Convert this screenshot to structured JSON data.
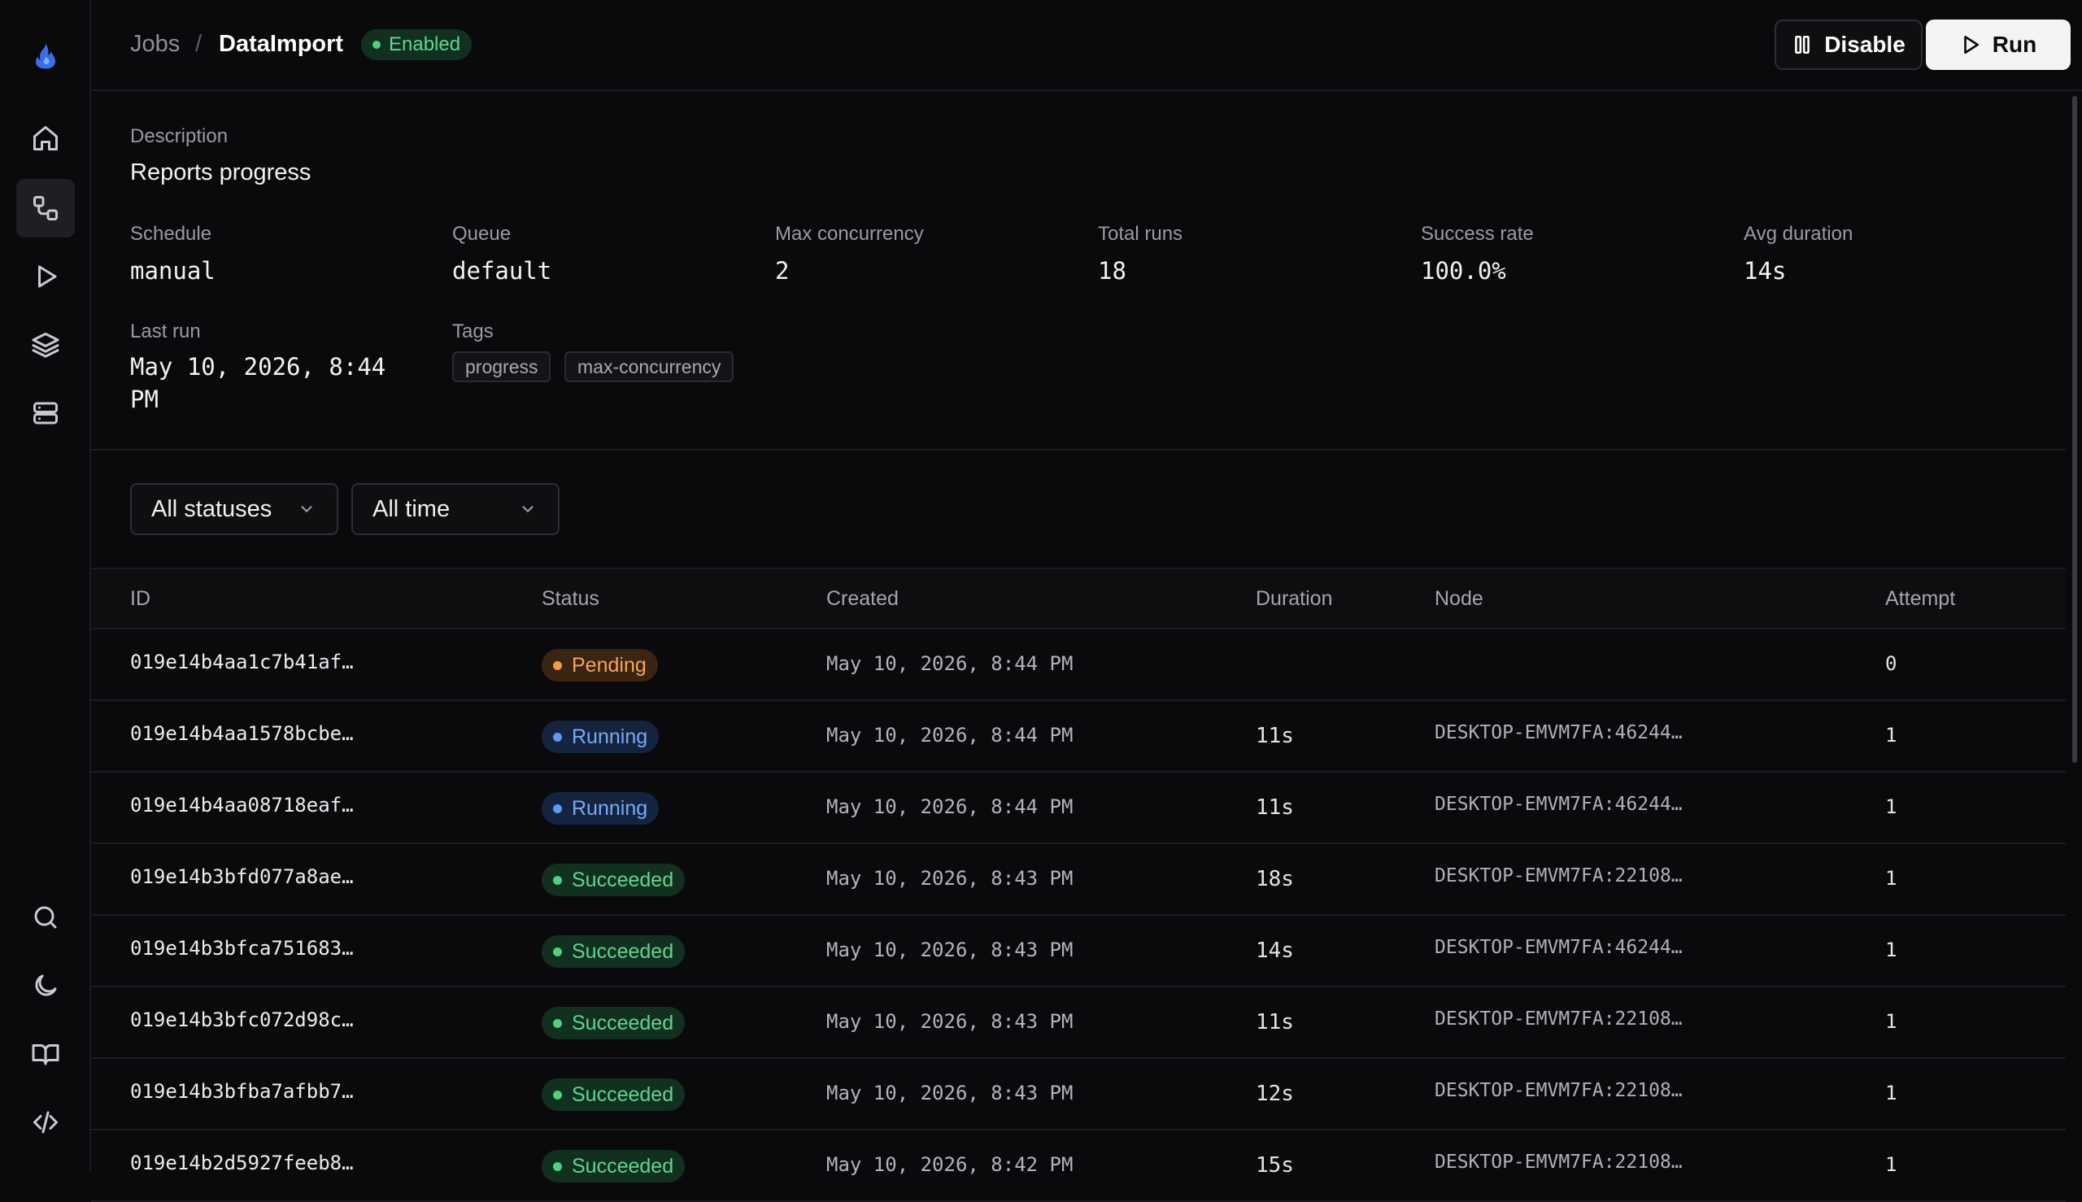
{
  "header": {
    "breadcrumb_root": "Jobs",
    "breadcrumb_sep": "/",
    "job_name": "DataImport",
    "status_badge": "Enabled",
    "disable_label": "Disable",
    "run_label": "Run"
  },
  "sidebar": {
    "items": [
      {
        "icon": "flame-logo-icon"
      },
      {
        "icon": "home-icon"
      },
      {
        "icon": "workflow-icon",
        "active": true
      },
      {
        "icon": "play-icon"
      },
      {
        "icon": "layers-icon"
      },
      {
        "icon": "server-icon"
      },
      {
        "icon": "search-icon"
      },
      {
        "icon": "moon-icon"
      },
      {
        "icon": "book-icon"
      },
      {
        "icon": "code-icon"
      }
    ]
  },
  "info": {
    "description_label": "Description",
    "description": "Reports progress",
    "schedule_label": "Schedule",
    "schedule": "manual",
    "queue_label": "Queue",
    "queue": "default",
    "max_concurrency_label": "Max concurrency",
    "max_concurrency": "2",
    "total_runs_label": "Total runs",
    "total_runs": "18",
    "success_rate_label": "Success rate",
    "success_rate": "100.0%",
    "avg_duration_label": "Avg duration",
    "avg_duration": "14s",
    "last_run_label": "Last run",
    "last_run_line1": "May 10, 2026, 8:44",
    "last_run_line2": "PM",
    "tags_label": "Tags",
    "tags": [
      "progress",
      "max-concurrency"
    ]
  },
  "filters": {
    "status": "All statuses",
    "time": "All time"
  },
  "table": {
    "columns": [
      "ID",
      "Status",
      "Created",
      "Duration",
      "Node",
      "Attempt"
    ],
    "rows": [
      {
        "id": "019e14b4aa1c7b41af…",
        "status": "Pending",
        "created": "May 10, 2026, 8:44 PM",
        "duration": "",
        "node": "",
        "attempt": "0"
      },
      {
        "id": "019e14b4aa1578bcbe…",
        "status": "Running",
        "created": "May 10, 2026, 8:44 PM",
        "duration": "11s",
        "node": "DESKTOP-EMVM7FA:46244…",
        "attempt": "1"
      },
      {
        "id": "019e14b4aa08718eaf…",
        "status": "Running",
        "created": "May 10, 2026, 8:44 PM",
        "duration": "11s",
        "node": "DESKTOP-EMVM7FA:46244…",
        "attempt": "1"
      },
      {
        "id": "019e14b3bfd077a8ae…",
        "status": "Succeeded",
        "created": "May 10, 2026, 8:43 PM",
        "duration": "18s",
        "node": "DESKTOP-EMVM7FA:22108…",
        "attempt": "1"
      },
      {
        "id": "019e14b3bfca751683…",
        "status": "Succeeded",
        "created": "May 10, 2026, 8:43 PM",
        "duration": "14s",
        "node": "DESKTOP-EMVM7FA:46244…",
        "attempt": "1"
      },
      {
        "id": "019e14b3bfc072d98c…",
        "status": "Succeeded",
        "created": "May 10, 2026, 8:43 PM",
        "duration": "11s",
        "node": "DESKTOP-EMVM7FA:22108…",
        "attempt": "1"
      },
      {
        "id": "019e14b3bfba7afbb7…",
        "status": "Succeeded",
        "created": "May 10, 2026, 8:43 PM",
        "duration": "12s",
        "node": "DESKTOP-EMVM7FA:22108…",
        "attempt": "1"
      },
      {
        "id": "019e14b2d5927feeb8…",
        "status": "Succeeded",
        "created": "May 10, 2026, 8:42 PM",
        "duration": "15s",
        "node": "DESKTOP-EMVM7FA:22108…",
        "attempt": "1"
      }
    ]
  },
  "colors": {
    "background": "#0a0a0c",
    "accent_blue": "#3b82f6",
    "pending": "#f39a48",
    "running": "#5f98f2",
    "succeeded": "#4ed17f"
  }
}
